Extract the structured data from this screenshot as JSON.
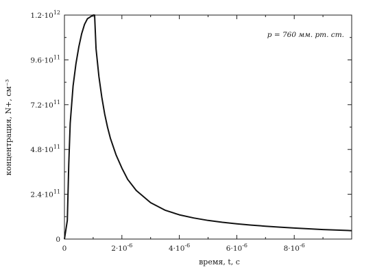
{
  "chart_data": {
    "type": "line",
    "title": "",
    "xlabel": "время, t, с",
    "ylabel": "концентрация, N+, см⁻³",
    "xlim": [
      0,
      1e-05
    ],
    "ylim": [
      0,
      1200000000000.0
    ],
    "grid": false,
    "annotation": "p = 760 мм. рт. ст.",
    "x_ticks": [
      {
        "value": 0,
        "label": "0",
        "exp": ""
      },
      {
        "value": 2e-06,
        "label": "2·10",
        "exp": "-6"
      },
      {
        "value": 4e-06,
        "label": "4·10",
        "exp": "-6"
      },
      {
        "value": 6e-06,
        "label": "6·10",
        "exp": "-6"
      },
      {
        "value": 8e-06,
        "label": "8·10",
        "exp": "-6"
      }
    ],
    "y_ticks": [
      {
        "value": 0,
        "label": "0",
        "exp": ""
      },
      {
        "value": 240000000000.0,
        "label": "2.4·10",
        "exp": "11"
      },
      {
        "value": 480000000000.0,
        "label": "4.8·10",
        "exp": "11"
      },
      {
        "value": 720000000000.0,
        "label": "7.2·10",
        "exp": "11"
      },
      {
        "value": 960000000000.0,
        "label": "9.6·10",
        "exp": "11"
      },
      {
        "value": 1200000000000.0,
        "label": "1.2·10",
        "exp": "12"
      }
    ],
    "series": [
      {
        "color": "#111111",
        "x": [
          0,
          1e-07,
          1.5e-07,
          2e-07,
          3e-07,
          4e-07,
          5e-07,
          6e-07,
          7e-07,
          8e-07,
          9e-07,
          1e-06,
          1.05e-06,
          1.1e-06,
          1.2e-06,
          1.3e-06,
          1.4e-06,
          1.5e-06,
          1.6e-06,
          1.8e-06,
          2e-06,
          2.2e-06,
          2.5e-06,
          3e-06,
          3.5e-06,
          4e-06,
          4.5e-06,
          5e-06,
          5.5e-06,
          6e-06,
          6.5e-06,
          7e-06,
          7.5e-06,
          8e-06,
          8.5e-06,
          9e-06,
          9.5e-06,
          1e-05
        ],
        "y": [
          0,
          100000000000.0,
          400000000000.0,
          620000000000.0,
          820000000000.0,
          940000000000.0,
          1030000000000.0,
          1100000000000.0,
          1150000000000.0,
          1180000000000.0,
          1190000000000.0,
          1200000000000.0,
          1200000000000.0,
          1020000000000.0,
          870000000000.0,
          760000000000.0,
          670000000000.0,
          600000000000.0,
          540000000000.0,
          450000000000.0,
          380000000000.0,
          320000000000.0,
          260000000000.0,
          195000000000.0,
          155000000000.0,
          130000000000.0,
          113000000000.0,
          100000000000.0,
          90000000000.0,
          82000000000.0,
          75000000000.0,
          69000000000.0,
          64000000000.0,
          59000000000.0,
          55000000000.0,
          51000000000.0,
          48000000000.0,
          45000000000.0
        ]
      }
    ]
  }
}
